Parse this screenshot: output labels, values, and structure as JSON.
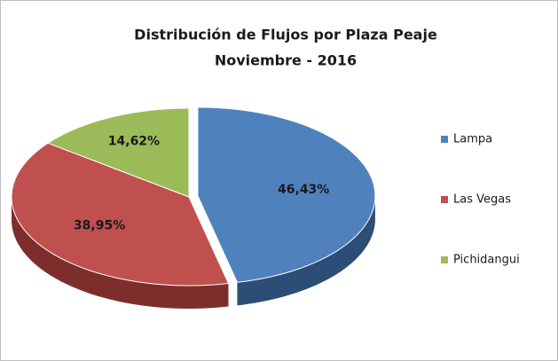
{
  "chart_data": {
    "type": "pie",
    "title": "Distribución de Flujos por Plaza Peaje",
    "subtitle": "Noviembre - 2016",
    "categories": [
      "Lampa",
      "Las Vegas",
      "Pichidangui"
    ],
    "values": [
      46.43,
      38.95,
      14.62
    ],
    "value_labels": [
      "46,43%",
      "38,95%",
      "14,62%"
    ],
    "colors": [
      "#4f81bd",
      "#c0504d",
      "#9bbb59"
    ],
    "side_colors": [
      "#2c4d75",
      "#7d2e2c",
      "#5f7530"
    ],
    "legend": "right"
  }
}
